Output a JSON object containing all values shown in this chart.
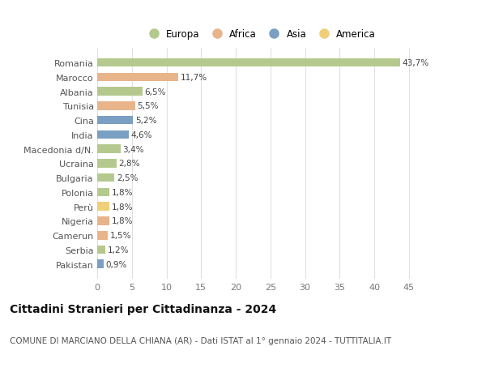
{
  "countries": [
    "Romania",
    "Marocco",
    "Albania",
    "Tunisia",
    "Cina",
    "India",
    "Macedonia d/N.",
    "Ucraina",
    "Bulgaria",
    "Polonia",
    "Perù",
    "Nigeria",
    "Camerun",
    "Serbia",
    "Pakistan"
  ],
  "values": [
    43.7,
    11.7,
    6.5,
    5.5,
    5.2,
    4.6,
    3.4,
    2.8,
    2.5,
    1.8,
    1.8,
    1.8,
    1.5,
    1.2,
    0.9
  ],
  "labels": [
    "43,7%",
    "11,7%",
    "6,5%",
    "5,5%",
    "5,2%",
    "4,6%",
    "3,4%",
    "2,8%",
    "2,5%",
    "1,8%",
    "1,8%",
    "1,8%",
    "1,5%",
    "1,2%",
    "0,9%"
  ],
  "continents": [
    "Europa",
    "Africa",
    "Europa",
    "Africa",
    "Asia",
    "Asia",
    "Europa",
    "Europa",
    "Europa",
    "Europa",
    "America",
    "Africa",
    "Africa",
    "Europa",
    "Asia"
  ],
  "continent_colors": {
    "Europa": "#b5c98e",
    "Africa": "#e8b48a",
    "Asia": "#7a9fc2",
    "America": "#f0ce7a"
  },
  "legend_order": [
    "Europa",
    "Africa",
    "Asia",
    "America"
  ],
  "title": "Cittadini Stranieri per Cittadinanza - 2024",
  "subtitle": "COMUNE DI MARCIANO DELLA CHIANA (AR) - Dati ISTAT al 1° gennaio 2024 - TUTTITALIA.IT",
  "xlim": [
    0,
    47
  ],
  "xticks": [
    0,
    5,
    10,
    15,
    20,
    25,
    30,
    35,
    40,
    45
  ],
  "background_color": "#ffffff",
  "grid_color": "#e0e0e0",
  "bar_height": 0.6,
  "label_fontsize": 7.5,
  "ytick_fontsize": 8,
  "xtick_fontsize": 8,
  "title_fontsize": 10,
  "subtitle_fontsize": 7.5
}
